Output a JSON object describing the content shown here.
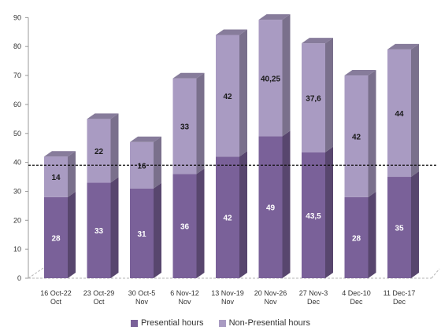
{
  "chart_data": {
    "type": "bar",
    "stacked": true,
    "categories": [
      [
        "16 Oct-22",
        "Oct"
      ],
      [
        "23 Oct-29",
        "Oct"
      ],
      [
        "30 Oct-5",
        "Nov"
      ],
      [
        "6 Nov-12",
        "Nov"
      ],
      [
        "13 Nov-19",
        "Nov"
      ],
      [
        "20 Nov-26",
        "Nov"
      ],
      [
        "27 Nov-3",
        "Dec"
      ],
      [
        "4 Dec-10",
        "Dec"
      ],
      [
        "11 Dec-17",
        "Dec"
      ]
    ],
    "series": [
      {
        "name": "Presential hours",
        "values": [
          28,
          33,
          31,
          36,
          42,
          49,
          43.5,
          28,
          35
        ],
        "labels": [
          "28",
          "33",
          "31",
          "36",
          "42",
          "49",
          "43,5",
          "28",
          "35"
        ],
        "color": "#7a6199"
      },
      {
        "name": "Non-Presential hours",
        "values": [
          14,
          22,
          16,
          33,
          42,
          40.25,
          37.6,
          42,
          44
        ],
        "labels": [
          "14",
          "22",
          "16",
          "33",
          "42",
          "40,25",
          "37,6",
          "42",
          "44"
        ],
        "color": "#a99bc2"
      }
    ],
    "ylim": [
      0,
      90
    ],
    "yticks": [
      0,
      10,
      20,
      30,
      40,
      50,
      60,
      70,
      80,
      90
    ],
    "reference_line": 39,
    "grid": false,
    "legend_position": "bottom"
  }
}
